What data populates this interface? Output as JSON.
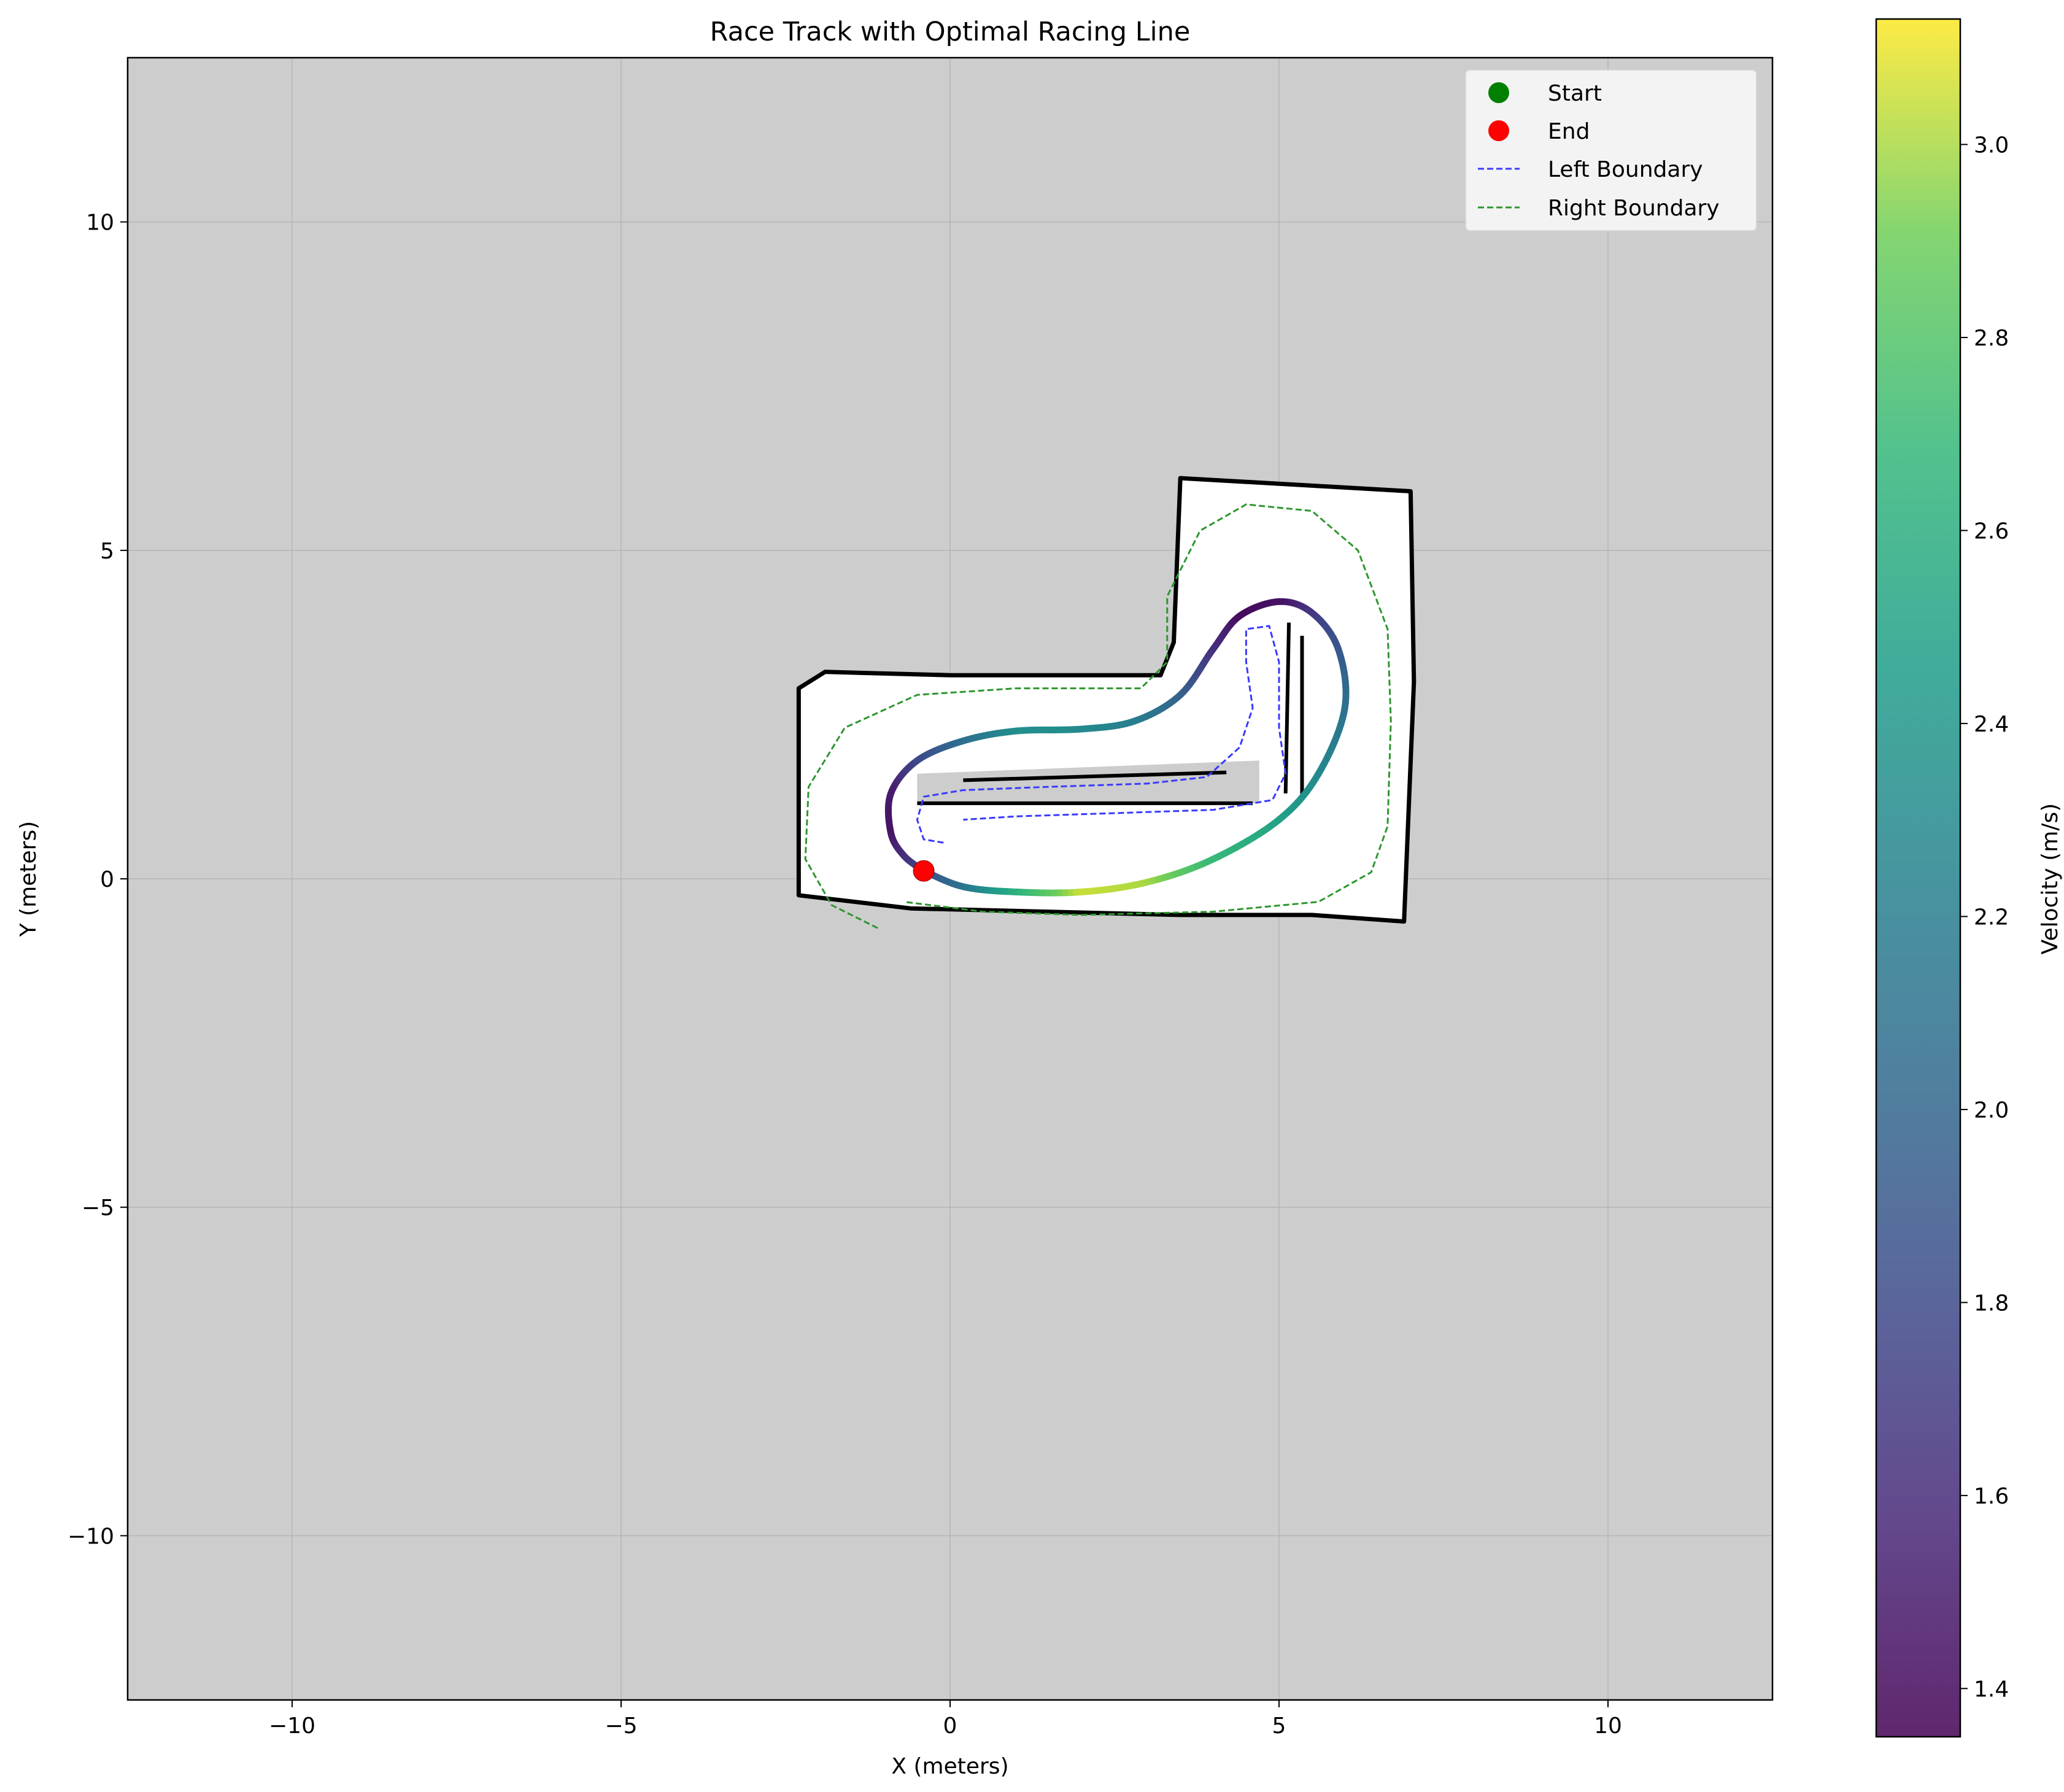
{
  "chart_data": {
    "type": "line",
    "title": "Race Track with Optimal Racing Line",
    "xlabel": "X (meters)",
    "ylabel": "Y (meters)",
    "xlim": [
      -12.5,
      12.5
    ],
    "ylim": [
      -12.5,
      12.5
    ],
    "xticks": [
      -10,
      -5,
      0,
      5,
      10
    ],
    "yticks": [
      -10,
      -5,
      0,
      5,
      10
    ],
    "xtick_labels": [
      "−10",
      "−5",
      "0",
      "5",
      "10"
    ],
    "ytick_labels": [
      "−10",
      "−5",
      "0",
      "5",
      "10"
    ],
    "grid": true,
    "background_color": "#cdcdcd",
    "track_free_space_color": "#ffffff",
    "track_wall_color": "#000000",
    "legend_position": "top-right",
    "legend": [
      {
        "label": "Start",
        "marker": "circle",
        "color": "#008000"
      },
      {
        "label": "End",
        "marker": "circle",
        "color": "#ff0000"
      },
      {
        "label": "Left Boundary",
        "marker": "dashed-line",
        "color": "#3a3aff"
      },
      {
        "label": "Right Boundary",
        "marker": "dashed-line",
        "color": "#2e962e"
      }
    ],
    "start_point": {
      "x": -0.4,
      "y": 0.12
    },
    "end_point": {
      "x": -0.4,
      "y": 0.12
    },
    "colorbar": {
      "label": "Velocity (m/s)",
      "colormap": "viridis",
      "min": 1.35,
      "max": 3.13,
      "ticks": [
        1.4,
        1.6,
        1.8,
        2.0,
        2.2,
        2.4,
        2.6,
        2.8,
        3.0
      ],
      "tick_labels": [
        "1.4",
        "1.6",
        "1.8",
        "2.0",
        "2.2",
        "2.4",
        "2.6",
        "2.8",
        "3.0"
      ]
    },
    "racing_line": {
      "name": "Optimal Racing Line",
      "points": [
        {
          "x": -0.4,
          "y": 0.12,
          "v": 1.8
        },
        {
          "x": 0.2,
          "y": -0.12,
          "v": 2.1
        },
        {
          "x": 1.0,
          "y": -0.2,
          "v": 2.6
        },
        {
          "x": 2.0,
          "y": -0.2,
          "v": 3.05
        },
        {
          "x": 3.0,
          "y": -0.05,
          "v": 3.0
        },
        {
          "x": 4.0,
          "y": 0.3,
          "v": 2.7
        },
        {
          "x": 5.0,
          "y": 0.9,
          "v": 2.5
        },
        {
          "x": 5.6,
          "y": 1.6,
          "v": 2.3
        },
        {
          "x": 6.0,
          "y": 2.6,
          "v": 2.1
        },
        {
          "x": 5.9,
          "y": 3.5,
          "v": 1.9
        },
        {
          "x": 5.5,
          "y": 4.05,
          "v": 1.7
        },
        {
          "x": 5.0,
          "y": 4.22,
          "v": 1.45
        },
        {
          "x": 4.4,
          "y": 4.0,
          "v": 1.4
        },
        {
          "x": 4.0,
          "y": 3.5,
          "v": 1.6
        },
        {
          "x": 3.5,
          "y": 2.8,
          "v": 1.95
        },
        {
          "x": 2.8,
          "y": 2.4,
          "v": 2.2
        },
        {
          "x": 2.0,
          "y": 2.28,
          "v": 2.3
        },
        {
          "x": 1.0,
          "y": 2.25,
          "v": 2.35
        },
        {
          "x": 0.2,
          "y": 2.1,
          "v": 2.1
        },
        {
          "x": -0.5,
          "y": 1.8,
          "v": 1.8
        },
        {
          "x": -0.9,
          "y": 1.3,
          "v": 1.5
        },
        {
          "x": -0.9,
          "y": 0.7,
          "v": 1.45
        },
        {
          "x": -0.7,
          "y": 0.35,
          "v": 1.6
        },
        {
          "x": -0.4,
          "y": 0.12,
          "v": 1.8
        }
      ]
    },
    "left_boundary": [
      {
        "x": -0.1,
        "y": 0.55
      },
      {
        "x": -0.4,
        "y": 0.6
      },
      {
        "x": -0.5,
        "y": 0.9
      },
      {
        "x": -0.4,
        "y": 1.25
      },
      {
        "x": 0.2,
        "y": 1.35
      },
      {
        "x": 1.5,
        "y": 1.4
      },
      {
        "x": 3.0,
        "y": 1.45
      },
      {
        "x": 3.9,
        "y": 1.55
      },
      {
        "x": 4.4,
        "y": 2.0
      },
      {
        "x": 4.6,
        "y": 2.6
      },
      {
        "x": 4.5,
        "y": 3.3
      },
      {
        "x": 4.5,
        "y": 3.8
      },
      {
        "x": 4.85,
        "y": 3.85
      },
      {
        "x": 5.0,
        "y": 3.3
      },
      {
        "x": 5.0,
        "y": 2.3
      },
      {
        "x": 5.1,
        "y": 1.6
      },
      {
        "x": 4.9,
        "y": 1.2
      },
      {
        "x": 4.0,
        "y": 1.05
      },
      {
        "x": 2.5,
        "y": 1.0
      },
      {
        "x": 1.0,
        "y": 0.95
      },
      {
        "x": 0.2,
        "y": 0.9
      }
    ],
    "right_boundary": [
      {
        "x": -1.1,
        "y": -0.75
      },
      {
        "x": -1.8,
        "y": -0.4
      },
      {
        "x": -2.2,
        "y": 0.3
      },
      {
        "x": -2.15,
        "y": 1.4
      },
      {
        "x": -1.6,
        "y": 2.3
      },
      {
        "x": -0.5,
        "y": 2.8
      },
      {
        "x": 1.0,
        "y": 2.9
      },
      {
        "x": 2.2,
        "y": 2.9
      },
      {
        "x": 2.9,
        "y": 2.9
      },
      {
        "x": 3.3,
        "y": 3.3
      },
      {
        "x": 3.3,
        "y": 4.3
      },
      {
        "x": 3.8,
        "y": 5.3
      },
      {
        "x": 4.5,
        "y": 5.7
      },
      {
        "x": 5.5,
        "y": 5.6
      },
      {
        "x": 6.2,
        "y": 5.0
      },
      {
        "x": 6.65,
        "y": 3.8
      },
      {
        "x": 6.7,
        "y": 2.4
      },
      {
        "x": 6.65,
        "y": 0.8
      },
      {
        "x": 6.4,
        "y": 0.1
      },
      {
        "x": 5.6,
        "y": -0.35
      },
      {
        "x": 4.0,
        "y": -0.5
      },
      {
        "x": 2.0,
        "y": -0.55
      },
      {
        "x": 0.5,
        "y": -0.5
      },
      {
        "x": -0.7,
        "y": -0.35
      }
    ],
    "track_region": [
      {
        "x": -2.3,
        "y": -0.25
      },
      {
        "x": -2.3,
        "y": 2.9
      },
      {
        "x": -1.9,
        "y": 3.15
      },
      {
        "x": 0.0,
        "y": 3.1
      },
      {
        "x": 3.2,
        "y": 3.1
      },
      {
        "x": 3.4,
        "y": 3.6
      },
      {
        "x": 3.5,
        "y": 6.1
      },
      {
        "x": 7.0,
        "y": 5.9
      },
      {
        "x": 7.05,
        "y": 3.0
      },
      {
        "x": 6.9,
        "y": -0.65
      },
      {
        "x": 5.5,
        "y": -0.55
      },
      {
        "x": 3.5,
        "y": -0.55
      },
      {
        "x": -0.6,
        "y": -0.45
      },
      {
        "x": -2.3,
        "y": -0.25
      }
    ],
    "inner_obstacle": [
      {
        "x": -0.5,
        "y": 1.15
      },
      {
        "x": 4.7,
        "y": 1.15
      },
      {
        "x": 4.7,
        "y": 1.8
      },
      {
        "x": -0.5,
        "y": 1.6
      }
    ],
    "inner_wall_segments": [
      [
        {
          "x": -0.5,
          "y": 1.15
        },
        {
          "x": 4.6,
          "y": 1.15
        }
      ],
      [
        {
          "x": 0.2,
          "y": 1.5
        },
        {
          "x": 4.2,
          "y": 1.62
        }
      ],
      [
        {
          "x": 5.1,
          "y": 1.3
        },
        {
          "x": 5.15,
          "y": 3.9
        }
      ],
      [
        {
          "x": 5.35,
          "y": 1.2
        },
        {
          "x": 5.35,
          "y": 3.7
        }
      ]
    ]
  }
}
